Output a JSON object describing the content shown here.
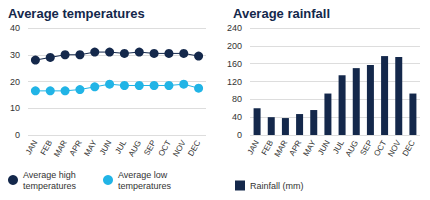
{
  "chart_data": [
    {
      "type": "line",
      "title": "Average temperatures",
      "categories": [
        "JAN",
        "FEB",
        "MAR",
        "APR",
        "MAY",
        "JUN",
        "JUL",
        "AUG",
        "SEP",
        "OCT",
        "NOV",
        "DEC"
      ],
      "series": [
        {
          "name": "Average high temperatures",
          "color": "#14284b",
          "marker": "circle",
          "values": [
            28,
            29,
            30,
            30,
            31,
            31,
            30.5,
            31,
            30.5,
            30.5,
            30.5,
            29.5
          ]
        },
        {
          "name": "Average low temperatures",
          "color": "#21b4e6",
          "marker": "circle",
          "values": [
            16.5,
            16.5,
            16.5,
            17,
            18,
            19,
            18.5,
            18.5,
            18.5,
            18.5,
            19,
            17.5
          ]
        }
      ],
      "ylim": [
        0,
        40
      ],
      "yticks": [
        0,
        10,
        20,
        30,
        40
      ],
      "grid": true,
      "legend": "bottom"
    },
    {
      "type": "bar",
      "title": "Average rainfall",
      "categories": [
        "JAN",
        "FEB",
        "MAR",
        "APR",
        "MAY",
        "JUN",
        "JUL",
        "AUG",
        "SEP",
        "OCT",
        "NOV",
        "DEC"
      ],
      "series": [
        {
          "name": "Rainfall (mm)",
          "color": "#14284b",
          "values": [
            60,
            40,
            38,
            47,
            56,
            93,
            134,
            150,
            157,
            177,
            175,
            93
          ]
        }
      ],
      "ylim": [
        0,
        240
      ],
      "yticks": [
        0,
        40,
        80,
        120,
        160,
        200,
        240
      ],
      "grid": true,
      "legend": "bottom"
    }
  ]
}
